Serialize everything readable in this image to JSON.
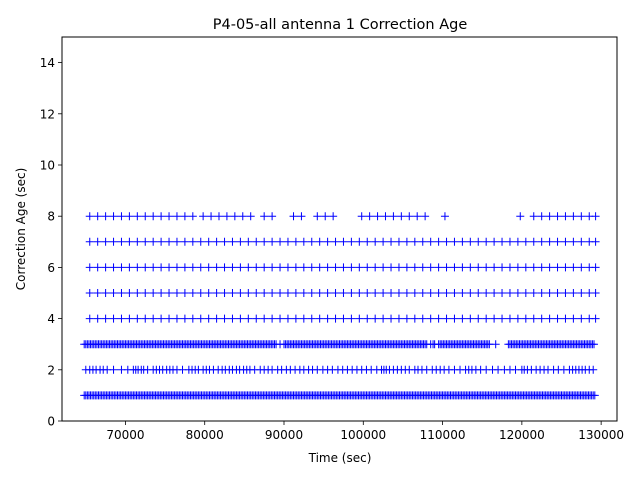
{
  "chart_data": {
    "type": "scatter",
    "title": "P4-05-all antenna 1 Correction Age",
    "xlabel": "Time (sec)",
    "ylabel": "Correction Age (sec)",
    "xlim": [
      62000,
      132000
    ],
    "ylim": [
      0,
      15
    ],
    "xticks": [
      70000,
      80000,
      90000,
      100000,
      110000,
      120000,
      130000
    ],
    "yticks": [
      0,
      2,
      4,
      6,
      8,
      10,
      12,
      14
    ],
    "xtick_labels": [
      "70000",
      "80000",
      "90000",
      "100000",
      "110000",
      "120000",
      "130000"
    ],
    "ytick_labels": [
      "0",
      "2",
      "4",
      "6",
      "8",
      "10",
      "12",
      "14"
    ],
    "marker": "+",
    "color": "#0000ff",
    "grid": false,
    "series": [
      {
        "y": 1,
        "x": [
          64800,
          65000,
          65200,
          65400,
          65600,
          65800,
          66000,
          66200,
          66400,
          66600,
          66800,
          67000,
          67200,
          67400,
          67600,
          67800,
          68000,
          68200,
          68400,
          68600,
          68800,
          69000,
          69200,
          69400,
          69600,
          69800,
          70000,
          70200,
          70400,
          70600,
          70800,
          71000,
          71200,
          71400,
          71600,
          71800,
          72000,
          72200,
          72400,
          72600,
          72800,
          73000,
          73200,
          73400,
          73600,
          73800,
          74000,
          74200,
          74400,
          74600,
          74800,
          75000,
          75200,
          75400,
          75600,
          75800,
          76000,
          76200,
          76400,
          76600,
          76800,
          77000,
          77200,
          77400,
          77600,
          77800,
          78000,
          78200,
          78400,
          78600,
          78800,
          79000,
          79200,
          79400,
          79600,
          79800,
          80000,
          80200,
          80400,
          80600,
          80800,
          81000,
          81200,
          81400,
          81600,
          81800,
          82000,
          82200,
          82400,
          82600,
          82800,
          83000,
          83200,
          83400,
          83600,
          83800,
          84000,
          84200,
          84400,
          84600,
          84800,
          85000,
          85200,
          85400,
          85600,
          85800,
          86000,
          86200,
          86400,
          86600,
          86800,
          87000,
          87200,
          87400,
          87600,
          87800,
          88000,
          88200,
          88400,
          88600,
          88800,
          89000,
          89200,
          89400,
          89600,
          89800,
          90000,
          90200,
          90400,
          90600,
          90800,
          91000,
          91200,
          91400,
          91600,
          91800,
          92000,
          92200,
          92400,
          92600,
          92800,
          93000,
          93200,
          93400,
          93600,
          93800,
          94000,
          94200,
          94400,
          94600,
          94800,
          95000,
          95200,
          95400,
          95600,
          95800,
          96000,
          96200,
          96400,
          96600,
          96800,
          97000,
          97200,
          97400,
          97600,
          97800,
          98000,
          98200,
          98400,
          98600,
          98800,
          99000,
          99200,
          99400,
          99600,
          99800,
          100000,
          100200,
          100400,
          100600,
          100800,
          101000,
          101200,
          101400,
          101600,
          101800,
          102000,
          102200,
          102400,
          102600,
          102800,
          103000,
          103200,
          103400,
          103600,
          103800,
          104000,
          104200,
          104400,
          104600,
          104800,
          105000,
          105200,
          105400,
          105600,
          105800,
          106000,
          106200,
          106400,
          106600,
          106800,
          107000,
          107200,
          107400,
          107600,
          107800,
          108000,
          108200,
          108400,
          108600,
          108800,
          109000,
          109200,
          109400,
          109600,
          109800,
          110000,
          110200,
          110400,
          110600,
          110800,
          111000,
          111200,
          111400,
          111600,
          111800,
          112000,
          112200,
          112400,
          112600,
          112800,
          113000,
          113200,
          113400,
          113600,
          113800,
          114000,
          114200,
          114400,
          114600,
          114800,
          115000,
          115200,
          115400,
          115600,
          115800,
          116000,
          116200,
          116400,
          116600,
          116800,
          117000,
          117200,
          117400,
          117600,
          117800,
          118000,
          118200,
          118400,
          118600,
          118800,
          119000,
          119200,
          119400,
          119600,
          119800,
          120000,
          120200,
          120400,
          120600,
          120800,
          121000,
          121200,
          121400,
          121600,
          121800,
          122000,
          122200,
          122400,
          122600,
          122800,
          123000,
          123200,
          123400,
          123600,
          123800,
          124000,
          124200,
          124400,
          124600,
          124800,
          125000,
          125200,
          125400,
          125600,
          125800,
          126000,
          126200,
          126400,
          126600,
          126800,
          127000,
          127200,
          127400,
          127600,
          127800,
          128000,
          128200,
          128400,
          128600,
          128800,
          129000,
          129200
        ]
      },
      {
        "y": 2,
        "x": [
          65000,
          65500,
          65900,
          66300,
          66800,
          67200,
          67700,
          68500,
          69500,
          70300,
          71000,
          71300,
          71600,
          72000,
          72300,
          72800,
          73500,
          73900,
          74300,
          74700,
          75200,
          75600,
          76000,
          76500,
          77200,
          78000,
          78400,
          78800,
          79200,
          79800,
          80200,
          80600,
          81100,
          81700,
          82200,
          82600,
          83100,
          83500,
          84000,
          84400,
          84900,
          85300,
          85700,
          86300,
          87000,
          87500,
          88000,
          88500,
          89200,
          89700,
          90300,
          90800,
          91400,
          92000,
          92500,
          93100,
          93600,
          94200,
          94900,
          95500,
          96100,
          96800,
          97400,
          98000,
          98600,
          99200,
          99800,
          100400,
          101000,
          101700,
          102300,
          102600,
          102900,
          103300,
          103800,
          104300,
          104800,
          105300,
          105800,
          106500,
          106900,
          107400,
          108000,
          108700,
          109200,
          109700,
          110200,
          110800,
          111500,
          112200,
          112900,
          113300,
          113700,
          114200,
          114800,
          115500,
          116300,
          117000,
          117800,
          118500,
          119200,
          120000,
          120300,
          120700,
          121200,
          121800,
          122300,
          122800,
          123300,
          124000,
          124600,
          125300,
          126000,
          126400,
          126800,
          127200,
          127600,
          128000,
          128500,
          129000
        ]
      },
      {
        "y": 3,
        "x": [
          64800,
          65000,
          65200,
          65400,
          65600,
          65800,
          66000,
          66200,
          66400,
          66600,
          66800,
          67000,
          67200,
          67400,
          67600,
          67800,
          68000,
          68200,
          68400,
          68600,
          68800,
          69000,
          69200,
          69400,
          69600,
          69800,
          70000,
          70200,
          70400,
          70600,
          70800,
          71000,
          71200,
          71400,
          71600,
          71800,
          72000,
          72200,
          72400,
          72600,
          72800,
          73000,
          73200,
          73400,
          73600,
          73800,
          74000,
          74200,
          74400,
          74600,
          74800,
          75000,
          75200,
          75400,
          75600,
          75800,
          76000,
          76200,
          76400,
          76600,
          76800,
          77000,
          77200,
          77400,
          77600,
          77800,
          78000,
          78200,
          78400,
          78600,
          78800,
          79000,
          79200,
          79400,
          79600,
          79800,
          80000,
          80200,
          80400,
          80600,
          80800,
          81000,
          81200,
          81400,
          81600,
          81800,
          82000,
          82200,
          82400,
          82600,
          82800,
          83000,
          83200,
          83400,
          83600,
          83800,
          84000,
          84200,
          84400,
          84600,
          84800,
          85000,
          85200,
          85400,
          85600,
          85800,
          86000,
          86200,
          86400,
          86600,
          86800,
          87000,
          87200,
          87400,
          87600,
          87800,
          88000,
          88200,
          88400,
          88600,
          88800,
          89000,
          89500,
          90000,
          90200,
          90400,
          90600,
          90800,
          91000,
          91200,
          91400,
          91600,
          91800,
          92000,
          92200,
          92400,
          92600,
          92800,
          93000,
          93200,
          93400,
          93600,
          93800,
          94000,
          94200,
          94400,
          94600,
          94800,
          95000,
          95200,
          95400,
          95600,
          95800,
          96000,
          96200,
          96400,
          96600,
          96800,
          97000,
          97200,
          97400,
          97600,
          97800,
          98000,
          98200,
          98400,
          98600,
          98800,
          99000,
          99200,
          99400,
          99600,
          99800,
          100000,
          100200,
          100400,
          100600,
          100800,
          101000,
          101200,
          101400,
          101600,
          101800,
          102000,
          102200,
          102400,
          102600,
          102800,
          103000,
          103200,
          103400,
          103600,
          103800,
          104000,
          104200,
          104400,
          104600,
          104800,
          105000,
          105200,
          105400,
          105600,
          105800,
          106000,
          106200,
          106400,
          106600,
          106800,
          107000,
          107200,
          107400,
          107600,
          107800,
          108000,
          108500,
          108800,
          109000,
          109500,
          109700,
          109900,
          110100,
          110300,
          110500,
          110700,
          110900,
          111100,
          111300,
          111500,
          111700,
          111900,
          112100,
          112300,
          112500,
          112700,
          112900,
          113100,
          113300,
          113500,
          113700,
          113900,
          114100,
          114300,
          114500,
          114700,
          114900,
          115100,
          115300,
          115500,
          115700,
          115900,
          116700,
          118300,
          118500,
          118700,
          118900,
          119100,
          119300,
          119500,
          119700,
          119900,
          120100,
          120300,
          120500,
          120700,
          120900,
          121100,
          121300,
          121500,
          121700,
          121900,
          122100,
          122300,
          122500,
          122700,
          122900,
          123100,
          123300,
          123500,
          123700,
          123900,
          124100,
          124300,
          124500,
          124700,
          124900,
          125100,
          125300,
          125500,
          125700,
          125900,
          126100,
          126300,
          126500,
          126700,
          126900,
          127100,
          127300,
          127500,
          127700,
          127900,
          128100,
          128300,
          128500,
          128700,
          128900,
          129100
        ]
      },
      {
        "y": 4,
        "x": [
          65500,
          66500,
          67500,
          68500,
          69500,
          70500,
          71500,
          72500,
          73500,
          74500,
          75500,
          76500,
          77500,
          78500,
          79500,
          80500,
          81500,
          82500,
          83500,
          84500,
          85500,
          86500,
          87500,
          88500,
          89500,
          90500,
          91500,
          92500,
          93500,
          94500,
          95500,
          96500,
          97500,
          98500,
          99500,
          100500,
          101500,
          102500,
          103500,
          104500,
          105500,
          106500,
          107500,
          108500,
          109500,
          110500,
          111500,
          112500,
          113500,
          114500,
          115500,
          116500,
          117500,
          118500,
          119500,
          120500,
          121500,
          122500,
          123500,
          124500,
          125500,
          126500,
          127500,
          128500,
          129300
        ]
      },
      {
        "y": 5,
        "x": [
          65500,
          66500,
          67500,
          68500,
          69500,
          70500,
          71500,
          72500,
          73500,
          74500,
          75500,
          76500,
          77500,
          78500,
          79500,
          80500,
          81500,
          82500,
          83500,
          84500,
          85500,
          86500,
          87500,
          88500,
          89500,
          90500,
          91500,
          92500,
          93500,
          94500,
          95500,
          96500,
          97500,
          98500,
          99500,
          100500,
          101500,
          102500,
          103500,
          104500,
          105500,
          106500,
          107500,
          108500,
          109500,
          110500,
          111500,
          112500,
          113500,
          114500,
          115500,
          116500,
          117500,
          118500,
          119500,
          120500,
          121500,
          122500,
          123500,
          124500,
          125500,
          126500,
          127500,
          128500,
          129300
        ]
      },
      {
        "y": 6,
        "x": [
          65500,
          66500,
          67500,
          68500,
          69500,
          70500,
          71500,
          72500,
          73500,
          74500,
          75500,
          76500,
          77500,
          78500,
          79500,
          80500,
          81500,
          82500,
          83500,
          84500,
          85500,
          86500,
          87500,
          88500,
          89500,
          90500,
          91500,
          92500,
          93500,
          94500,
          95500,
          96500,
          97500,
          98500,
          99500,
          100500,
          101500,
          102500,
          103500,
          104500,
          105500,
          106500,
          107500,
          108500,
          109500,
          110500,
          111500,
          112500,
          113500,
          114500,
          115500,
          116500,
          117500,
          118500,
          119500,
          120500,
          121500,
          122500,
          123500,
          124500,
          125500,
          126500,
          127500,
          128500,
          129300
        ]
      },
      {
        "y": 7,
        "x": [
          65500,
          66500,
          67500,
          68500,
          69500,
          70500,
          71500,
          72500,
          73500,
          74500,
          75500,
          76500,
          77500,
          78500,
          79500,
          80500,
          81500,
          82500,
          83500,
          84500,
          85500,
          86500,
          87500,
          88500,
          89500,
          90500,
          91500,
          92500,
          93500,
          94500,
          95500,
          96500,
          97500,
          98500,
          99500,
          100500,
          101500,
          102500,
          103500,
          104500,
          105500,
          106500,
          107500,
          108500,
          109500,
          110500,
          111500,
          112500,
          113500,
          114500,
          115500,
          116500,
          117500,
          118500,
          119500,
          120500,
          121500,
          122500,
          123500,
          124500,
          125500,
          126500,
          127500,
          128500,
          129300
        ]
      },
      {
        "y": 8,
        "x": [
          65500,
          66500,
          67500,
          68500,
          69500,
          70500,
          71500,
          72500,
          73500,
          74500,
          75500,
          76500,
          77500,
          78500,
          79800,
          80800,
          81800,
          82800,
          83800,
          84800,
          85800,
          87500,
          88500,
          91200,
          92200,
          94200,
          95200,
          96200,
          99800,
          100800,
          101800,
          102800,
          103800,
          104800,
          105800,
          106800,
          107800,
          110300,
          119800,
          121500,
          122500,
          123500,
          124500,
          125500,
          126500,
          127500,
          128500,
          129300
        ]
      }
    ]
  }
}
